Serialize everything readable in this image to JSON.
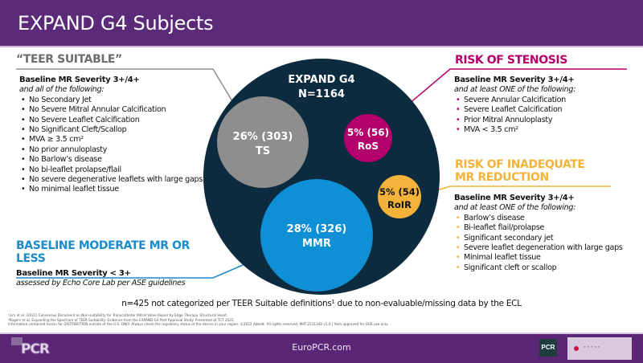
{
  "header": {
    "title": "EXPAND G4 Subjects"
  },
  "center": {
    "title": "EXPAND G4",
    "n": "N=1164"
  },
  "circles": [
    {
      "id": "ts",
      "pct": "26% (303)",
      "label": "TS",
      "color": "#8e8e8e"
    },
    {
      "id": "ros",
      "pct": "5% (56)",
      "label": "RoS",
      "color": "#b3006b"
    },
    {
      "id": "roir",
      "pct": "5% (54)",
      "label": "RoIR",
      "color": "#f3b23a"
    },
    {
      "id": "mmr",
      "pct": "28% (326)",
      "label": "MMR",
      "color": "#0f8fd6"
    }
  ],
  "colors": {
    "header": "#5b2a78",
    "outer_circle": "#0d2b3e",
    "teer": "#6d6d6d",
    "ros": "#b3006b",
    "roir": "#f3b23a",
    "mmr": "#1a8ccc"
  },
  "teer": {
    "title": "“TEER SUITABLE”",
    "severity": "Baseline MR Severity 3+/4+",
    "qualifier": "and all of the following:",
    "items": [
      "No Secondary Jet",
      "No Severe Mitral Annular Calcification",
      "No Severe Leaflet Calcification",
      "No Significant Cleft/Scallop",
      "MVA ≥ 3.5 cm²",
      "No prior annuloplasty",
      "No Barlow’s disease",
      "No bi-leaflet prolapse/flail",
      "No severe degenerative leaflets with large gaps",
      "No minimal leaflet tissue"
    ]
  },
  "mmr": {
    "title_line1": "BASELINE MODERATE MR OR",
    "title_line2": "LESS",
    "severity": "Baseline MR Severity < 3+",
    "qualifier": "assessed by Echo Core Lab per ASE guidelines"
  },
  "ros": {
    "title": "RISK OF STENOSIS",
    "severity": "Baseline MR Severity 3+/4+",
    "qualifier": "and at least ONE of the following:",
    "items": [
      "Severe Annular Calcification",
      "Severe Leaflet Calcification",
      "Prior Mitral Annuloplasty",
      "MVA < 3.5 cm²"
    ]
  },
  "roir": {
    "title_line1": "RISK OF INADEQUATE",
    "title_line2": "MR REDUCTION",
    "severity": "Baseline MR Severity 3+/4+",
    "qualifier": "and at least ONE of the following:",
    "items": [
      "Barlow’s disease",
      "Bi-leaflet flail/prolapse",
      "Significant secondary jet",
      "Severe leaflet degeneration with large gaps",
      "Minimal leaflet tissue",
      "Significant cleft or scallop"
    ]
  },
  "note": "n=425 not categorized per TEER Suitable definitions¹ due to non-evaluable/missing data by the ECL",
  "footnotes": [
    "¹Lim et al. (2021) Consensus Document on Non-suitability for Transcatheter Mitral Valve Repair by Edge Therapy. Structural Heart.",
    "²Rogers et al. Expanding the Spectrum of TEER Suitability: Evidence from the EXPAND G4 Post Approval Study. Presented at TCT 2022.",
    "Information contained herein for DISTRIBUTION outside of the U.S. ONLY. Always check the regulatory status of the device in your region. ©2022 Abbott. All rights reserved. MAT-2211340 v1.0 | Item approved for OUS use only."
  ],
  "footer": {
    "url": "EuroPCR.com",
    "logo_left": "PCR",
    "logo_right": "PCR"
  }
}
